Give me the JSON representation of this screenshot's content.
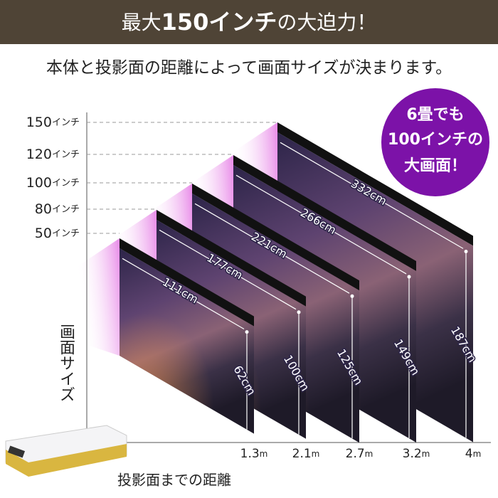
{
  "header": {
    "title_parts": [
      "最大",
      "150インチ",
      "の大迫力！"
    ]
  },
  "subtitle": "本体と投影面の距離によって画面サイズが決まります。",
  "badge": {
    "lines": [
      "6畳でも",
      "100インチの",
      "大画面！"
    ]
  },
  "y_axis_label": "画面サイズ",
  "x_axis_label": "投影面までの距離",
  "screens": [
    {
      "size": {
        "number": "50",
        "unit": "インチ"
      },
      "distance": {
        "number": "1.3",
        "unit": "m"
      },
      "width": "111cm",
      "height": "62cm"
    },
    {
      "size": {
        "number": "80",
        "unit": "インチ"
      },
      "distance": {
        "number": "2.1",
        "unit": "m"
      },
      "width": "177cm",
      "height": "100cm"
    },
    {
      "size": {
        "number": "100",
        "unit": "インチ"
      },
      "distance": {
        "number": "2.7",
        "unit": "m"
      },
      "width": "221cm",
      "height": "125cm"
    },
    {
      "size": {
        "number": "120",
        "unit": "インチ"
      },
      "distance": {
        "number": "3.2",
        "unit": "m"
      },
      "width": "266cm",
      "height": "149cm"
    },
    {
      "size": {
        "number": "150",
        "unit": "インチ"
      },
      "distance": {
        "number": "4",
        "unit": "m"
      },
      "width": "332cm",
      "height": "187cm"
    }
  ]
}
